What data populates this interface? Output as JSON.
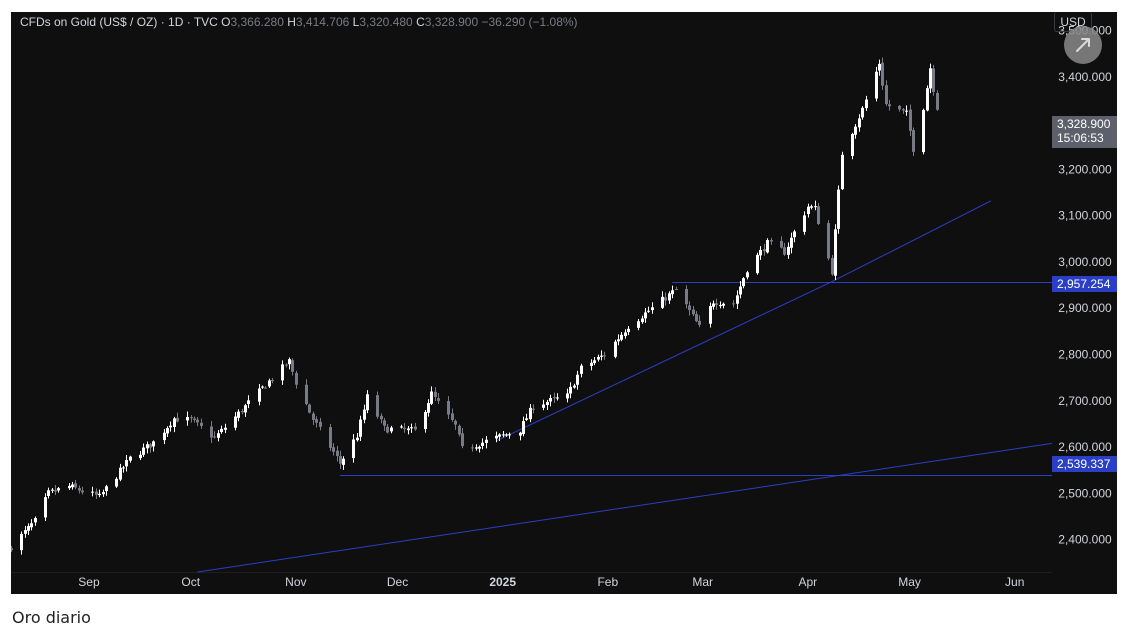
{
  "legend": {
    "symbol": "CFDs on Gold (US$ / OZ) · 1D · TVC",
    "open_label": "O",
    "open": "3,366.280",
    "high_label": "H",
    "high": "3,414.706",
    "low_label": "L",
    "low": "3,320.480",
    "close_label": "C",
    "close": "3,328.900",
    "change": "−36.290 (−1.08%)"
  },
  "currency": "USD",
  "last_price": {
    "price": "3,328.900",
    "countdown": "15:06:53"
  },
  "levels": [
    {
      "label": "2,957.254",
      "value": 2957.254
    },
    {
      "label": "2,539.337",
      "value": 2539.337
    }
  ],
  "caption": "Oro diario",
  "colors": {
    "background": "#0f0f0f",
    "bull": "#ffffff",
    "bear": "#787b86",
    "line": "#2b3fc4",
    "grid_text": "#d1d4dc"
  },
  "icons": {
    "expand": "expand-arrow-icon"
  },
  "chart_data": {
    "type": "candlestick",
    "title": "CFDs on Gold (US$ / OZ) · 1D · TVC",
    "ylim": [
      2330,
      3540
    ],
    "y_ticks": [
      {
        "value": 3500,
        "label": "3,500.000"
      },
      {
        "value": 3400,
        "label": "3,400.000"
      },
      {
        "value": 3300,
        "label": "3,300.000"
      },
      {
        "value": 3200,
        "label": "3,200.000"
      },
      {
        "value": 3100,
        "label": "3,100.000"
      },
      {
        "value": 3000,
        "label": "3,000.000"
      },
      {
        "value": 2900,
        "label": "2,900.000"
      },
      {
        "value": 2800,
        "label": "2,800.000"
      },
      {
        "value": 2700,
        "label": "2,700.000"
      },
      {
        "value": 2600,
        "label": "2,600.000"
      },
      {
        "value": 2500,
        "label": "2,500.000"
      },
      {
        "value": 2400,
        "label": "2,400.000"
      }
    ],
    "x_ticks": [
      {
        "date": "2024-09-01",
        "label": "Sep",
        "bold": false
      },
      {
        "date": "2024-10-01",
        "label": "Oct",
        "bold": false
      },
      {
        "date": "2024-11-01",
        "label": "Nov",
        "bold": false
      },
      {
        "date": "2024-12-01",
        "label": "Dec",
        "bold": false
      },
      {
        "date": "2025-01-01",
        "label": "2025",
        "bold": true
      },
      {
        "date": "2025-02-01",
        "label": "Feb",
        "bold": false
      },
      {
        "date": "2025-03-01",
        "label": "Mar",
        "bold": false
      },
      {
        "date": "2025-04-01",
        "label": "Apr",
        "bold": false
      },
      {
        "date": "2025-05-01",
        "label": "May",
        "bold": false
      },
      {
        "date": "2025-06-01",
        "label": "Jun",
        "bold": false
      }
    ],
    "x_range": [
      "2024-08-09",
      "2025-06-12"
    ],
    "horizontal_levels": [
      {
        "value": 2957.254,
        "from": "2025-02-20",
        "to": "2025-06-12"
      },
      {
        "value": 2539.337,
        "from": "2024-11-14",
        "to": "2025-06-12"
      }
    ],
    "trendlines": [
      {
        "from": [
          "2024-10-03",
          2330
        ],
        "to": [
          "2025-06-12",
          2608
        ]
      },
      {
        "from": [
          "2024-12-30",
          2613
        ],
        "to": [
          "2025-04-08",
          2957
        ]
      },
      {
        "from": [
          "2025-04-08",
          2957
        ],
        "to": [
          "2025-05-25",
          3132
        ]
      }
    ],
    "candle_points": [
      [
        "2024-08-09",
        2385
      ],
      [
        "2024-08-16",
        2440
      ],
      [
        "2024-08-20",
        2500
      ],
      [
        "2024-08-26",
        2515
      ],
      [
        "2024-09-04",
        2492
      ],
      [
        "2024-09-13",
        2575
      ],
      [
        "2024-09-20",
        2610
      ],
      [
        "2024-09-26",
        2662
      ],
      [
        "2024-10-01",
        2658
      ],
      [
        "2024-10-08",
        2620
      ],
      [
        "2024-10-16",
        2680
      ],
      [
        "2024-10-23",
        2735
      ],
      [
        "2024-10-30",
        2785
      ],
      [
        "2024-11-01",
        2740
      ],
      [
        "2024-11-06",
        2660
      ],
      [
        "2024-11-14",
        2565
      ],
      [
        "2024-11-19",
        2625
      ],
      [
        "2024-11-22",
        2708
      ],
      [
        "2024-11-27",
        2640
      ],
      [
        "2024-12-06",
        2635
      ],
      [
        "2024-12-11",
        2715
      ],
      [
        "2024-12-18",
        2645
      ],
      [
        "2024-12-20",
        2595
      ],
      [
        "2024-12-30",
        2620
      ],
      [
        "2025-01-06",
        2637
      ],
      [
        "2025-01-10",
        2690
      ],
      [
        "2025-01-20",
        2710
      ],
      [
        "2025-01-24",
        2770
      ],
      [
        "2025-01-31",
        2800
      ],
      [
        "2025-02-07",
        2862
      ],
      [
        "2025-02-14",
        2900
      ],
      [
        "2025-02-21",
        2940
      ],
      [
        "2025-02-28",
        2858
      ],
      [
        "2025-03-04",
        2915
      ],
      [
        "2025-03-10",
        2910
      ],
      [
        "2025-03-14",
        2985
      ],
      [
        "2025-03-20",
        3040
      ],
      [
        "2025-03-25",
        3022
      ],
      [
        "2025-04-01",
        3120
      ],
      [
        "2025-04-03",
        3115
      ],
      [
        "2025-04-08",
        2980
      ],
      [
        "2025-04-11",
        3235
      ],
      [
        "2025-04-17",
        3330
      ],
      [
        "2025-04-22",
        3430
      ],
      [
        "2025-04-24",
        3340
      ],
      [
        "2025-04-30",
        3320
      ],
      [
        "2025-05-02",
        3245
      ],
      [
        "2025-05-05",
        3335
      ],
      [
        "2025-05-07",
        3420
      ],
      [
        "2025-05-09",
        3328.9
      ]
    ]
  }
}
